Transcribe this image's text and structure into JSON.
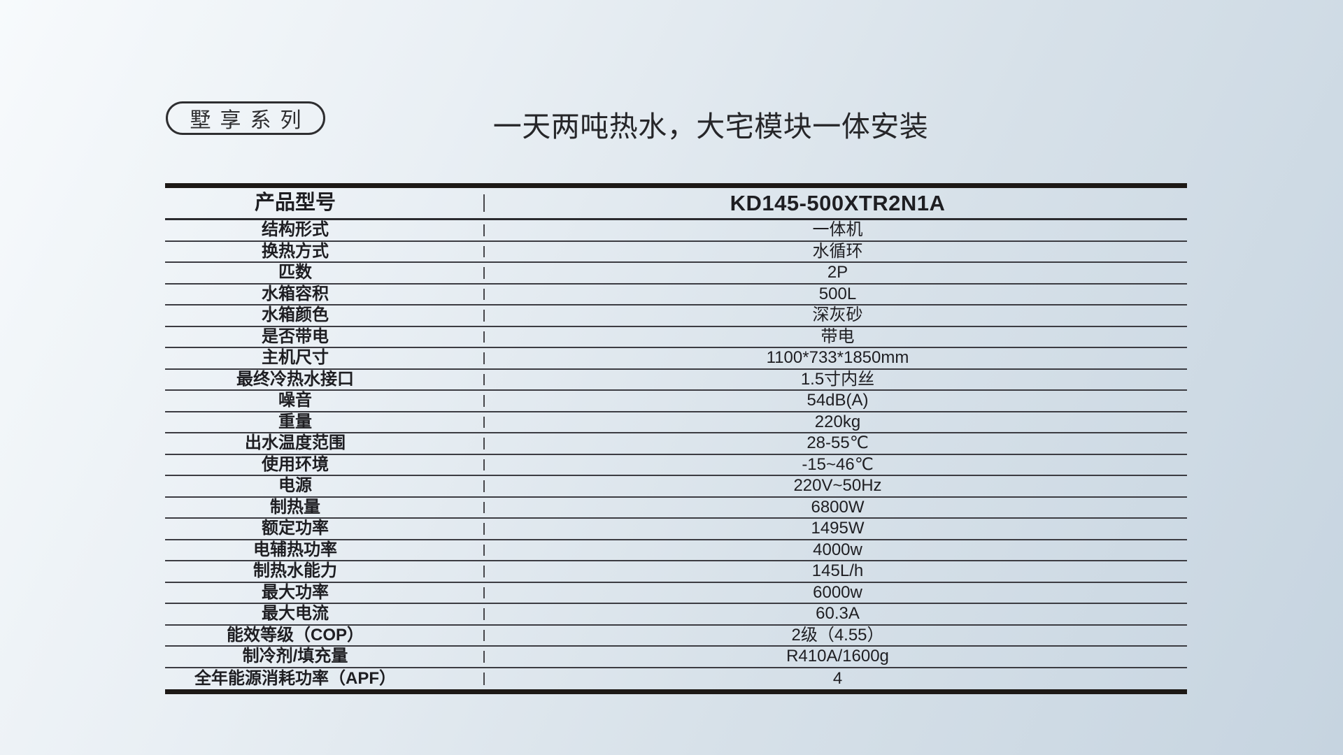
{
  "page": {
    "badge_label": "墅享系列",
    "headline": "一天两吨热水，大宅模块一体安装"
  },
  "colors": {
    "background_top_left": "#f7fafc",
    "background_bottom_right": "#c6d4e0",
    "table_border_heavy": "#1d1916",
    "row_separator": "#3c3c42",
    "text": "#1e1e22"
  },
  "table": {
    "header": {
      "label": "产品型号",
      "value": "KD145-500XTR2N1A"
    },
    "rows": [
      {
        "label": "结构形式",
        "value": "一体机"
      },
      {
        "label": "换热方式",
        "value": "水循环"
      },
      {
        "label": "匹数",
        "value": "2P"
      },
      {
        "label": "水箱容积",
        "value": "500L"
      },
      {
        "label": "水箱颜色",
        "value": "深灰砂"
      },
      {
        "label": "是否带电",
        "value": "带电"
      },
      {
        "label": "主机尺寸",
        "value": "1100*733*1850mm"
      },
      {
        "label": "最终冷热水接口",
        "value": "1.5寸内丝"
      },
      {
        "label": "噪音",
        "value": "54dB(A)"
      },
      {
        "label": "重量",
        "value": "220kg"
      },
      {
        "label": "出水温度范围",
        "value": "28-55℃"
      },
      {
        "label": "使用环境",
        "value": "-15~46℃"
      },
      {
        "label": "电源",
        "value": "220V~50Hz"
      },
      {
        "label": "制热量",
        "value": "6800W"
      },
      {
        "label": "额定功率",
        "value": "1495W"
      },
      {
        "label": "电辅热功率",
        "value": "4000w"
      },
      {
        "label": "制热水能力",
        "value": "145L/h"
      },
      {
        "label": "最大功率",
        "value": "6000w"
      },
      {
        "label": "最大电流",
        "value": "60.3A"
      },
      {
        "label": "能效等级（COP）",
        "value": "2级（4.55）"
      },
      {
        "label": "制冷剂/填充量",
        "value": "R410A/1600g"
      },
      {
        "label": "全年能源消耗功率（APF）",
        "value": "4"
      }
    ]
  }
}
